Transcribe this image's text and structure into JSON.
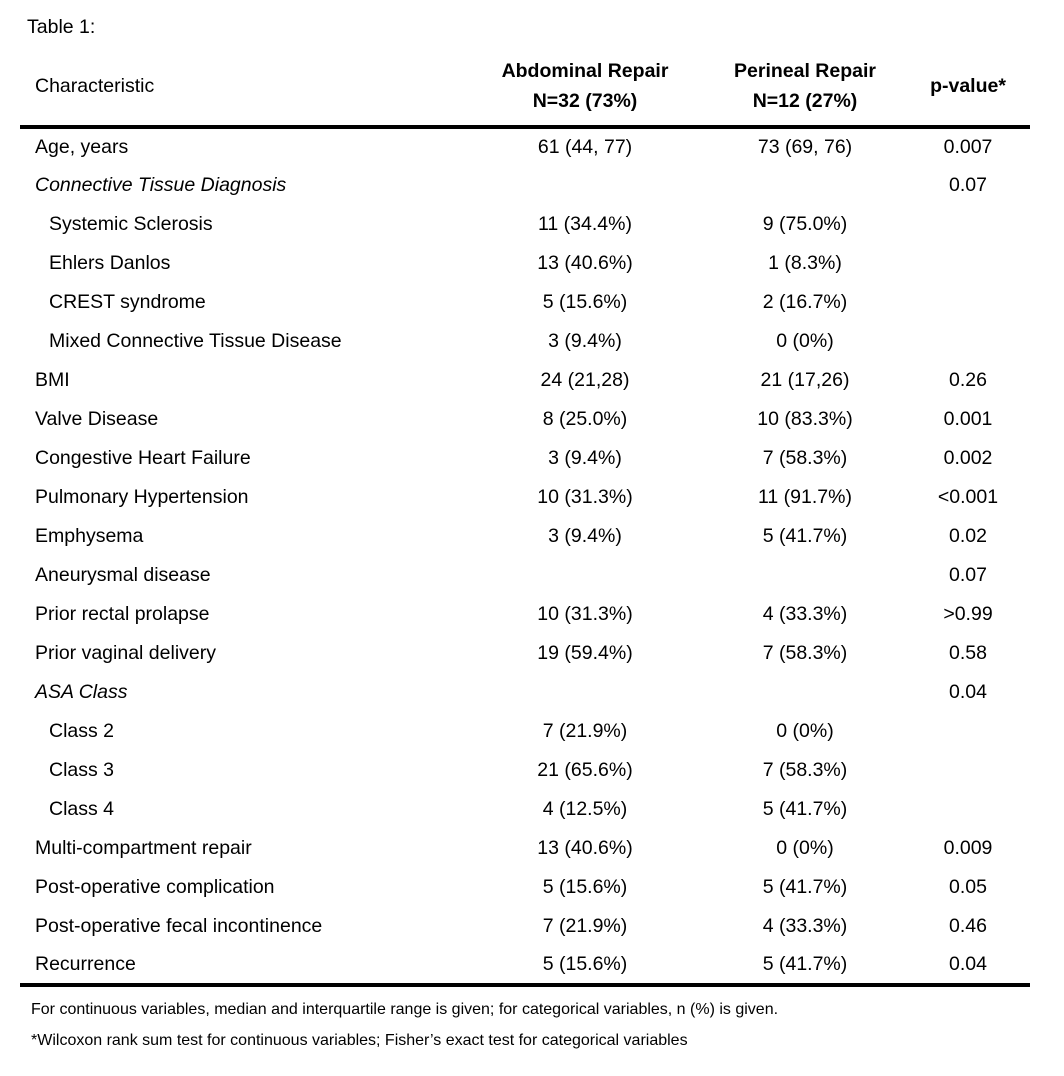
{
  "title": "Table 1:",
  "table": {
    "header": {
      "characteristic": "Characteristic",
      "abdominal_line1": "Abdominal Repair",
      "abdominal_line2": "N=32 (73%)",
      "perineal_line1": "Perineal Repair",
      "perineal_line2": "N=12 (27%)",
      "pvalue": "p-value*"
    },
    "rows": [
      {
        "label": "Age, years",
        "italic": false,
        "indent": false,
        "abdominal": "61 (44, 77)",
        "perineal": "73 (69, 76)",
        "pvalue": "0.007"
      },
      {
        "label": "Connective Tissue Diagnosis",
        "italic": true,
        "indent": false,
        "abdominal": "",
        "perineal": "",
        "pvalue": "0.07"
      },
      {
        "label": "Systemic Sclerosis",
        "italic": false,
        "indent": true,
        "abdominal": "11 (34.4%)",
        "perineal": "9 (75.0%)",
        "pvalue": ""
      },
      {
        "label": "Ehlers Danlos",
        "italic": false,
        "indent": true,
        "abdominal": "13 (40.6%)",
        "perineal": "1 (8.3%)",
        "pvalue": ""
      },
      {
        "label": "CREST syndrome",
        "italic": false,
        "indent": true,
        "abdominal": "5 (15.6%)",
        "perineal": "2 (16.7%)",
        "pvalue": ""
      },
      {
        "label": "Mixed Connective Tissue Disease",
        "italic": false,
        "indent": true,
        "abdominal": "3 (9.4%)",
        "perineal": "0 (0%)",
        "pvalue": ""
      },
      {
        "label": "BMI",
        "italic": false,
        "indent": false,
        "abdominal": "24 (21,28)",
        "perineal": "21 (17,26)",
        "pvalue": "0.26"
      },
      {
        "label": "Valve Disease",
        "italic": false,
        "indent": false,
        "abdominal": "8 (25.0%)",
        "perineal": "10 (83.3%)",
        "pvalue": "0.001"
      },
      {
        "label": "Congestive Heart Failure",
        "italic": false,
        "indent": false,
        "abdominal": "3 (9.4%)",
        "perineal": "7 (58.3%)",
        "pvalue": "0.002"
      },
      {
        "label": "Pulmonary Hypertension",
        "italic": false,
        "indent": false,
        "abdominal": "10 (31.3%)",
        "perineal": "11 (91.7%)",
        "pvalue": "<0.001"
      },
      {
        "label": "Emphysema",
        "italic": false,
        "indent": false,
        "abdominal": "3 (9.4%)",
        "perineal": "5 (41.7%)",
        "pvalue": "0.02"
      },
      {
        "label": "Aneurysmal disease",
        "italic": false,
        "indent": false,
        "abdominal": "",
        "perineal": "",
        "pvalue": "0.07"
      },
      {
        "label": "Prior rectal prolapse",
        "italic": false,
        "indent": false,
        "abdominal": "10 (31.3%)",
        "perineal": "4 (33.3%)",
        "pvalue": ">0.99"
      },
      {
        "label": "Prior vaginal delivery",
        "italic": false,
        "indent": false,
        "abdominal": "19 (59.4%)",
        "perineal": "7 (58.3%)",
        "pvalue": "0.58"
      },
      {
        "label": "ASA Class",
        "italic": true,
        "indent": false,
        "abdominal": "",
        "perineal": "",
        "pvalue": "0.04"
      },
      {
        "label": "Class 2",
        "italic": false,
        "indent": true,
        "abdominal": "7 (21.9%)",
        "perineal": "0 (0%)",
        "pvalue": ""
      },
      {
        "label": "Class 3",
        "italic": false,
        "indent": true,
        "abdominal": "21 (65.6%)",
        "perineal": "7 (58.3%)",
        "pvalue": ""
      },
      {
        "label": "Class 4",
        "italic": false,
        "indent": true,
        "abdominal": "4 (12.5%)",
        "perineal": "5 (41.7%)",
        "pvalue": ""
      },
      {
        "label": "Multi-compartment repair",
        "italic": false,
        "indent": false,
        "abdominal": "13 (40.6%)",
        "perineal": "0 (0%)",
        "pvalue": "0.009"
      },
      {
        "label": "Post-operative complication",
        "italic": false,
        "indent": false,
        "abdominal": "5 (15.6%)",
        "perineal": "5 (41.7%)",
        "pvalue": "0.05"
      },
      {
        "label": "Post-operative fecal incontinence",
        "italic": false,
        "indent": false,
        "abdominal": "7 (21.9%)",
        "perineal": "4 (33.3%)",
        "pvalue": "0.46"
      },
      {
        "label": "Recurrence",
        "italic": false,
        "indent": false,
        "abdominal": "5 (15.6%)",
        "perineal": "5 (41.7%)",
        "pvalue": "0.04"
      }
    ]
  },
  "footnotes": {
    "general": "For continuous variables, median and interquartile range is given; for categorical variables, n (%) is given.",
    "asterisk": "*Wilcoxon rank sum test for continuous variables; Fisher’s exact test for categorical variables"
  },
  "colors": {
    "text": "#000000",
    "background": "#ffffff",
    "rule": "#000000"
  }
}
